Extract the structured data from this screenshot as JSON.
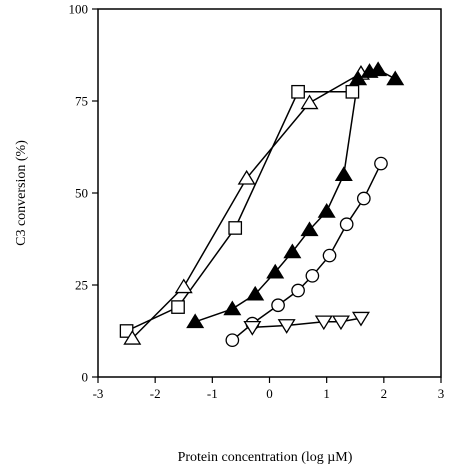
{
  "chart_data": {
    "type": "scatter",
    "title": "",
    "xlabel": "Protein concentration  (log µM)",
    "ylabel": "C3 conversion (%)",
    "xlim": [
      -3,
      3
    ],
    "ylim": [
      0,
      100
    ],
    "x_ticks": [
      -3,
      -2,
      -1,
      0,
      1,
      2,
      3
    ],
    "y_ticks": [
      0,
      25,
      50,
      75,
      100
    ],
    "grid": false,
    "legend": "none",
    "series": [
      {
        "marker": "square-open",
        "color": "#000000",
        "x": [
          -2.5,
          -1.6,
          -0.6,
          0.5,
          1.45
        ],
        "y": [
          12.5,
          19,
          40.5,
          77.5,
          77.5
        ]
      },
      {
        "marker": "triangle-up-open",
        "color": "#000000",
        "x": [
          -2.4,
          -1.5,
          -0.4,
          0.7,
          1.6
        ],
        "y": [
          10.5,
          24.5,
          54,
          74.5,
          82.5
        ]
      },
      {
        "marker": "triangle-up-filled",
        "color": "#000000",
        "x": [
          -1.3,
          -0.65,
          -0.25,
          0.1,
          0.4,
          0.7,
          1.0,
          1.3,
          1.55,
          1.75,
          1.9,
          2.2
        ],
        "y": [
          15,
          18.5,
          22.5,
          28.5,
          34,
          40,
          45,
          55,
          81,
          83,
          83.5,
          81
        ]
      },
      {
        "marker": "circle-open",
        "color": "#000000",
        "x": [
          -0.65,
          -0.3,
          0.15,
          0.5,
          0.75,
          1.05,
          1.35,
          1.65,
          1.95
        ],
        "y": [
          10,
          14.5,
          19.5,
          23.5,
          27.5,
          33,
          41.5,
          48.5,
          58
        ]
      },
      {
        "marker": "triangle-down-open",
        "color": "#000000",
        "x": [
          -0.3,
          0.3,
          0.95,
          1.25,
          1.6
        ],
        "y": [
          13.5,
          14,
          15,
          15,
          16
        ]
      }
    ]
  }
}
